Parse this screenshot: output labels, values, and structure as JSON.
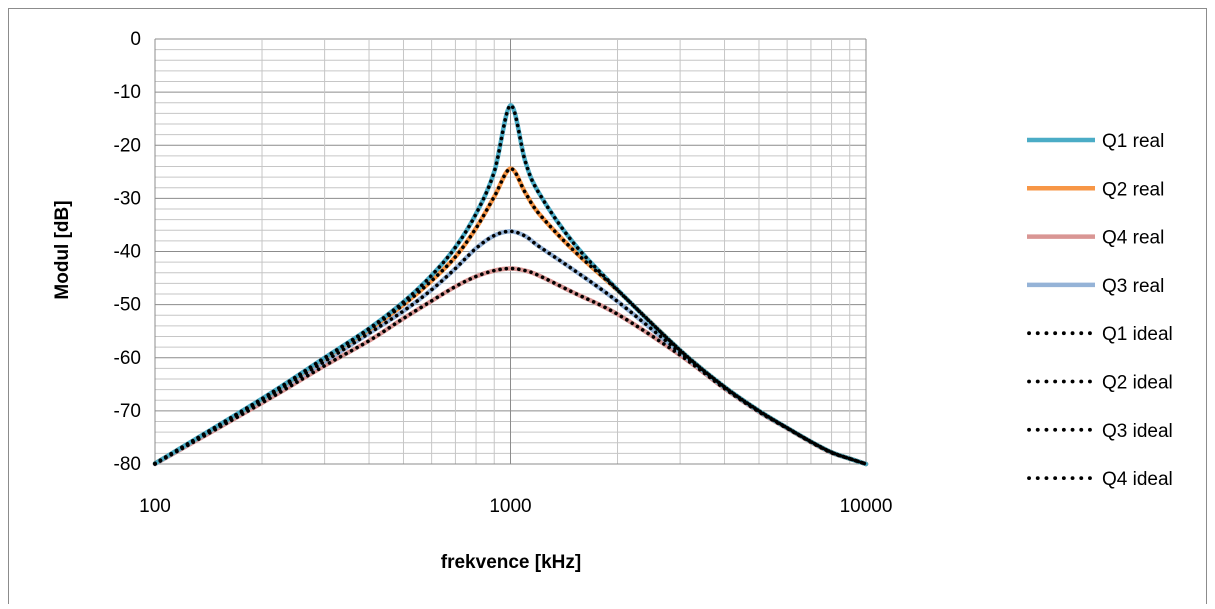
{
  "chart_data": {
    "type": "line",
    "title": "",
    "xlabel": "frekvence [kHz]",
    "ylabel": "Modul [dB]",
    "x_scale": "log",
    "xlim": [
      100,
      10000
    ],
    "ylim": [
      -80,
      0
    ],
    "x_ticks": [
      100,
      1000,
      10000
    ],
    "x_tick_labels": [
      "100",
      "1000",
      "10000"
    ],
    "y_ticks": [
      0,
      -10,
      -20,
      -30,
      -40,
      -50,
      -60,
      -70,
      -80
    ],
    "y_tick_labels": [
      "0",
      "-10",
      "-20",
      "-30",
      "-40",
      "-50",
      "-60",
      "-70",
      "-80"
    ],
    "grid": true,
    "legend_position": "right",
    "x": [
      100,
      200,
      300,
      400,
      500,
      600,
      700,
      800,
      900,
      1000,
      1100,
      1200,
      1500,
      2000,
      3000,
      4000,
      5000,
      6000,
      7000,
      8000,
      9000,
      10000
    ],
    "series": [
      {
        "name": "Q1 real",
        "style": "solid",
        "color": "#4bacc6",
        "values": [
          -79.9,
          -67.7,
          -60.0,
          -54.5,
          -49.5,
          -44.5,
          -39.2,
          -32.9,
          -25.0,
          -12.5,
          -23.0,
          -28.9,
          -38.3,
          -47.2,
          -58.6,
          -65.5,
          -70.0,
          -73.2,
          -75.8,
          -77.8,
          -79.0,
          -80.0
        ]
      },
      {
        "name": "Q2 real",
        "style": "solid",
        "color": "#f79646",
        "values": [
          -79.9,
          -67.8,
          -60.1,
          -54.7,
          -50.0,
          -45.5,
          -41.0,
          -35.6,
          -29.7,
          -24.4,
          -28.9,
          -32.8,
          -39.7,
          -47.3,
          -58.6,
          -65.5,
          -70.0,
          -73.2,
          -75.8,
          -77.8,
          -79.0,
          -80.0
        ]
      },
      {
        "name": "Q4 real",
        "style": "solid",
        "color": "#d99694",
        "values": [
          -80.0,
          -68.5,
          -61.5,
          -56.8,
          -52.6,
          -49.3,
          -46.6,
          -44.7,
          -43.6,
          -43.2,
          -43.6,
          -44.5,
          -47.7,
          -51.8,
          -59.5,
          -65.8,
          -70.2,
          -73.3,
          -75.9,
          -77.9,
          -79.0,
          -80.0
        ]
      },
      {
        "name": "Q3 real",
        "style": "solid",
        "color": "#95b3d7",
        "values": [
          -80.0,
          -68.0,
          -60.7,
          -55.4,
          -51.2,
          -47.2,
          -43.2,
          -39.4,
          -37.0,
          -36.2,
          -37.1,
          -39.0,
          -43.4,
          -49.4,
          -59.0,
          -65.6,
          -70.1,
          -73.2,
          -75.8,
          -77.8,
          -79.0,
          -80.0
        ]
      },
      {
        "name": "Q1 ideal",
        "style": "dotted",
        "color": "#000000",
        "values": [
          -79.9,
          -67.7,
          -60.0,
          -54.5,
          -49.5,
          -44.5,
          -39.2,
          -32.9,
          -25.0,
          -12.5,
          -23.0,
          -28.9,
          -38.3,
          -47.2,
          -58.6,
          -65.5,
          -70.0,
          -73.2,
          -75.8,
          -77.8,
          -79.0,
          -80.0
        ]
      },
      {
        "name": "Q2 ideal",
        "style": "dotted",
        "color": "#000000",
        "values": [
          -79.9,
          -67.8,
          -60.1,
          -54.7,
          -50.0,
          -45.5,
          -41.0,
          -35.6,
          -29.7,
          -24.4,
          -28.9,
          -32.8,
          -39.7,
          -47.3,
          -58.6,
          -65.5,
          -70.0,
          -73.2,
          -75.8,
          -77.8,
          -79.0,
          -80.0
        ]
      },
      {
        "name": "Q3 ideal",
        "style": "dotted",
        "color": "#000000",
        "values": [
          -80.0,
          -68.0,
          -60.7,
          -55.4,
          -51.2,
          -47.2,
          -43.2,
          -39.4,
          -37.0,
          -36.2,
          -37.1,
          -39.0,
          -43.4,
          -49.4,
          -59.0,
          -65.6,
          -70.1,
          -73.2,
          -75.8,
          -77.8,
          -79.0,
          -80.0
        ]
      },
      {
        "name": "Q4 ideal",
        "style": "dotted",
        "color": "#000000",
        "values": [
          -80.0,
          -68.5,
          -61.5,
          -56.8,
          -52.6,
          -49.3,
          -46.6,
          -44.7,
          -43.6,
          -43.2,
          -43.6,
          -44.5,
          -47.7,
          -51.8,
          -59.5,
          -65.8,
          -70.2,
          -73.3,
          -75.9,
          -77.9,
          -79.0,
          -80.0
        ]
      }
    ]
  }
}
